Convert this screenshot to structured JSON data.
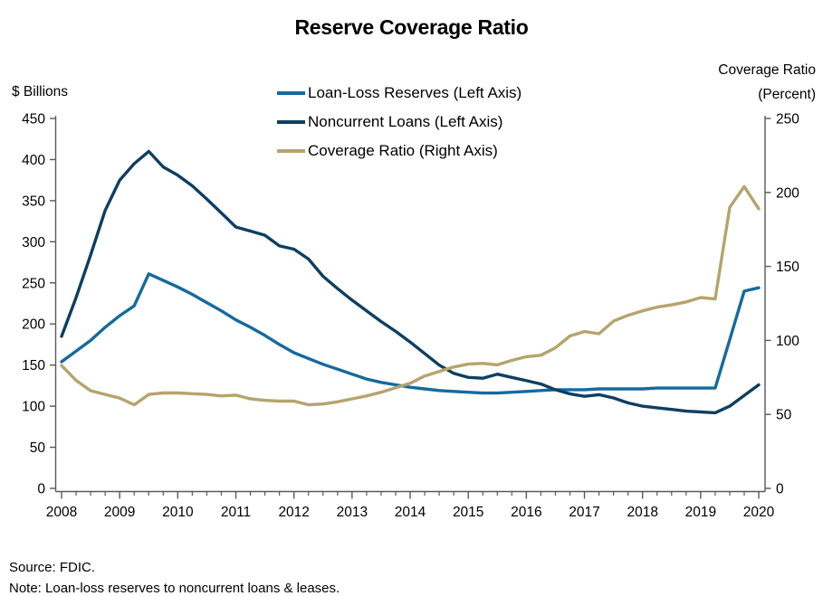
{
  "title": "Reserve Coverage Ratio",
  "left_axis": {
    "unit_label": "$ Billions",
    "ticks": [
      0,
      50,
      100,
      150,
      200,
      250,
      300,
      350,
      400,
      450
    ],
    "range": [
      0,
      450
    ]
  },
  "right_axis": {
    "unit_label_line1": "Coverage Ratio",
    "unit_label_line2": "(Percent)",
    "ticks": [
      0,
      50,
      100,
      150,
      200,
      250
    ],
    "range": [
      0,
      250
    ]
  },
  "x_axis": {
    "years": [
      2008,
      2009,
      2010,
      2011,
      2012,
      2013,
      2014,
      2015,
      2016,
      2017,
      2018,
      2019,
      2020
    ],
    "minor_tick_interval_years": 0.25
  },
  "footer": {
    "source": "Source: FDIC.",
    "note": "Note: Loan-loss reserves to noncurrent loans & leases."
  },
  "colors": {
    "reserves_line": "#156a9e",
    "noncurrent_line": "#0e3f61",
    "coverage_line": "#b5a46c",
    "axis": "#595959"
  },
  "chart_data": {
    "type": "line",
    "title": "Reserve Coverage Ratio",
    "x_start": 2008.0,
    "x_step": 0.25,
    "x_range": [
      2008,
      2020
    ],
    "ylabel_left": "$ Billions",
    "ylabel_right": "Coverage Ratio (Percent)",
    "ylim_left": [
      0,
      450
    ],
    "ylim_right": [
      0,
      250
    ],
    "grid": false,
    "legend_position": "top-center",
    "frequency": "quarterly, 2008 Q1 through 2020 Q1",
    "series": [
      {
        "name": "Loan-Loss Reserves (Left Axis)",
        "axis": "left",
        "color": "#156a9e",
        "values": [
          154,
          167,
          180,
          196,
          210,
          222,
          261,
          253,
          245,
          236,
          226,
          216,
          205,
          196,
          186,
          175,
          165,
          158,
          151,
          145,
          139,
          133,
          129,
          126,
          123,
          121,
          119,
          118,
          117,
          116,
          116,
          117,
          118,
          119,
          120,
          120,
          120,
          121,
          121,
          121,
          121,
          122,
          122,
          122,
          122,
          122,
          181,
          240,
          244
        ]
      },
      {
        "name": "Noncurrent Loans (Left Axis)",
        "axis": "left",
        "color": "#0e3f61",
        "values": [
          185,
          232,
          284,
          338,
          375,
          395,
          410,
          391,
          381,
          368,
          352,
          335,
          318,
          313,
          308,
          295,
          291,
          279,
          258,
          243,
          229,
          216,
          203,
          191,
          178,
          164,
          150,
          140,
          135,
          134,
          139,
          135,
          131,
          127,
          120,
          115,
          112,
          114,
          110,
          104,
          100,
          98,
          96,
          94,
          93,
          92,
          100,
          113,
          126
        ]
      },
      {
        "name": "Coverage Ratio (Right Axis)",
        "axis": "right",
        "color": "#b5a46c",
        "values": [
          83,
          73,
          66,
          63.5,
          61,
          56.5,
          63.5,
          64.5,
          64.5,
          64,
          63.5,
          62.5,
          63,
          60.5,
          59.5,
          59,
          59,
          56.5,
          57,
          58.5,
          60.5,
          62.5,
          65,
          68,
          71,
          76,
          79,
          82,
          84,
          84.5,
          83.5,
          86.5,
          89,
          90,
          95,
          103,
          106,
          104.5,
          113,
          117,
          120,
          122.5,
          124,
          126,
          129,
          128,
          190,
          204,
          189
        ]
      }
    ]
  }
}
